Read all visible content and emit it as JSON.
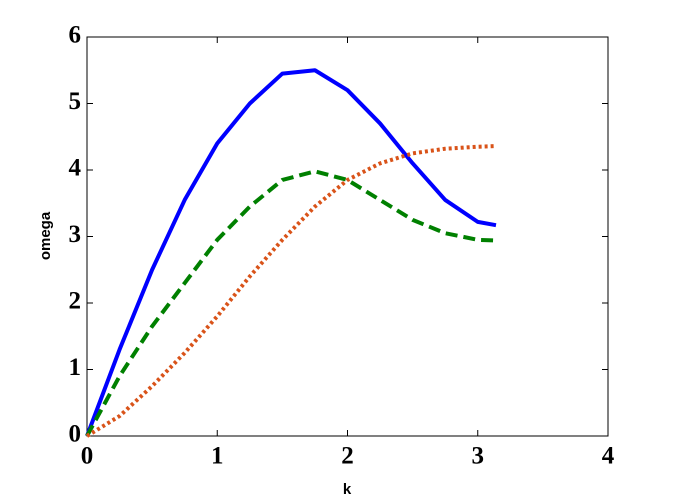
{
  "chart_data": {
    "type": "line",
    "x_label": "k",
    "y_label": "omega",
    "x": [
      0,
      0.25,
      0.5,
      0.75,
      1.0,
      1.25,
      1.5,
      1.75,
      2.0,
      2.25,
      2.5,
      2.75,
      3.0,
      3.14
    ],
    "series": [
      {
        "color": "#0000ff",
        "style": "solid",
        "values": [
          0,
          1.3,
          2.5,
          3.55,
          4.4,
          5.0,
          5.45,
          5.5,
          5.2,
          4.7,
          4.1,
          3.55,
          3.22,
          3.17
        ]
      },
      {
        "color": "#008000",
        "style": "dashed",
        "values": [
          0,
          0.9,
          1.65,
          2.3,
          2.95,
          3.45,
          3.85,
          3.98,
          3.85,
          3.55,
          3.25,
          3.05,
          2.95,
          2.94
        ]
      },
      {
        "color": "#d95319",
        "style": "dotted",
        "values": [
          0,
          0.3,
          0.75,
          1.25,
          1.8,
          2.4,
          2.95,
          3.45,
          3.85,
          4.1,
          4.25,
          4.32,
          4.35,
          4.36
        ]
      }
    ],
    "xlim": [
      0,
      4
    ],
    "xticks": [
      0,
      1,
      2,
      3,
      4
    ],
    "ylim": [
      0,
      6
    ],
    "yticks": [
      0,
      1,
      2,
      3,
      4,
      5,
      6
    ]
  }
}
